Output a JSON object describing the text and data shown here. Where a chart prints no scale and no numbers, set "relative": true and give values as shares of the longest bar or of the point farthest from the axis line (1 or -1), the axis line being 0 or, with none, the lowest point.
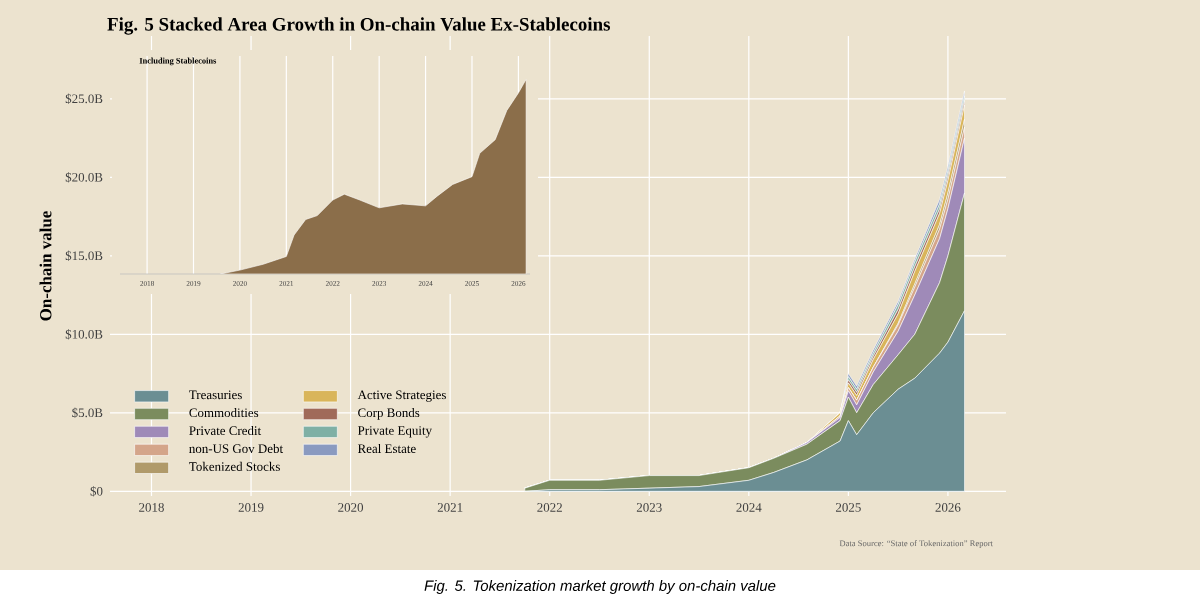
{
  "chart_data": [
    {
      "type": "area",
      "stacked": true,
      "title": "Fig. 5  Stacked Area Growth in On-chain Value Ex-Stablecoins",
      "ylabel": "On-chain value",
      "x": [
        "2021-10",
        "2022-01",
        "2022-07",
        "2023-01",
        "2023-07",
        "2024-01",
        "2024-04",
        "2024-08",
        "2024-12",
        "2025-01",
        "2025-02",
        "2025-04",
        "2025-07",
        "2025-09",
        "2025-12",
        "2026-01",
        "2026-03"
      ],
      "series": [
        {
          "name": "Treasuries",
          "color": "#6b8e93",
          "values": [
            0,
            0.1,
            0.1,
            0.2,
            0.3,
            0.7,
            1.2,
            2.0,
            3.2,
            4.5,
            3.6,
            5.0,
            6.5,
            7.2,
            8.8,
            9.5,
            11.5
          ]
        },
        {
          "name": "Commodities",
          "color": "#7b8c5e",
          "values": [
            0.2,
            0.6,
            0.6,
            0.8,
            0.7,
            0.8,
            0.9,
            1.0,
            1.3,
            1.5,
            1.4,
            1.8,
            2.2,
            2.8,
            4.5,
            5.5,
            7.5
          ]
        },
        {
          "name": "Private Credit",
          "color": "#9f8ab8",
          "values": [
            0,
            0,
            0,
            0,
            0,
            0,
            0,
            0.1,
            0.2,
            0.4,
            0.5,
            0.8,
            1.5,
            2.5,
            2.8,
            3.0,
            3.5
          ]
        },
        {
          "name": "non-US Gov Debt",
          "color": "#d4a58a",
          "values": [
            0,
            0,
            0,
            0,
            0,
            0,
            0,
            0,
            0.1,
            0.2,
            0.3,
            0.3,
            0.4,
            0.5,
            0.6,
            0.6,
            0.7
          ]
        },
        {
          "name": "Tokenized Stocks",
          "color": "#b09a6a",
          "values": [
            0,
            0,
            0,
            0,
            0,
            0,
            0,
            0,
            0,
            0,
            0,
            0,
            0.1,
            0.2,
            0.3,
            0.4,
            0.5
          ]
        },
        {
          "name": "Active Strategies",
          "color": "#d9b55a",
          "values": [
            0,
            0,
            0,
            0,
            0,
            0,
            0,
            0,
            0.2,
            0.3,
            0.3,
            0.5,
            0.6,
            0.8,
            0.7,
            0.8,
            0.9
          ]
        },
        {
          "name": "Corp Bonds",
          "color": "#a06a5a",
          "values": [
            0,
            0,
            0,
            0,
            0,
            0,
            0,
            0,
            0,
            0.2,
            0.2,
            0.2,
            0.3,
            0.3,
            0.3,
            0.3,
            0.3
          ]
        },
        {
          "name": "Private Equity",
          "color": "#7fb0a5",
          "values": [
            0,
            0,
            0,
            0,
            0,
            0,
            0,
            0,
            0,
            0.2,
            0.2,
            0.2,
            0.3,
            0.3,
            0.3,
            0.3,
            0.3
          ]
        },
        {
          "name": "Real Estate",
          "color": "#8a9ac0",
          "values": [
            0,
            0,
            0,
            0,
            0,
            0,
            0,
            0,
            0,
            0.2,
            0.2,
            0.2,
            0.2,
            0.2,
            0.3,
            0.3,
            0.3
          ]
        }
      ],
      "xlim": [
        "2017-08",
        "2026-08"
      ],
      "xticks": [
        "2018",
        "2019",
        "2020",
        "2021",
        "2022",
        "2023",
        "2024",
        "2025",
        "2026"
      ],
      "ylim": [
        -0.3,
        29
      ],
      "yticks": [
        {
          "value": 0,
          "label": "$0"
        },
        {
          "value": 5,
          "label": "$5.0B"
        },
        {
          "value": 10,
          "label": "$10.0B"
        },
        {
          "value": 15,
          "label": "$15.0B"
        },
        {
          "value": 20,
          "label": "$20.0B"
        },
        {
          "value": 25,
          "label": "$25.0B"
        }
      ],
      "grid": true,
      "legend": "bottom left",
      "annotations": [
        "Data Source: “State of Tokenization” Report",
        "Fig. 5. Tokenization market growth by on-chain value"
      ]
    },
    {
      "type": "area",
      "title": "Including Stablecoins",
      "relative": true,
      "color": "#8b6e4a",
      "x": [
        "2019-08",
        "2020-01",
        "2020-07",
        "2021-01",
        "2021-03",
        "2021-06",
        "2021-09",
        "2022-01",
        "2022-04",
        "2022-08",
        "2023-01",
        "2023-07",
        "2024-01",
        "2024-04",
        "2024-08",
        "2025-01",
        "2025-03",
        "2025-07",
        "2025-10",
        "2026-01",
        "2026-03"
      ],
      "values": [
        0,
        0.02,
        0.05,
        0.09,
        0.2,
        0.28,
        0.3,
        0.38,
        0.41,
        0.38,
        0.34,
        0.36,
        0.35,
        0.4,
        0.46,
        0.5,
        0.62,
        0.69,
        0.84,
        0.93,
        1.0
      ],
      "xlim": [
        "2017-06",
        "2026-04"
      ],
      "xticks": [
        "2018",
        "2019",
        "2020",
        "2021",
        "2022",
        "2023",
        "2024",
        "2025",
        "2026"
      ],
      "grid": "x",
      "tick_labels": "x"
    }
  ]
}
